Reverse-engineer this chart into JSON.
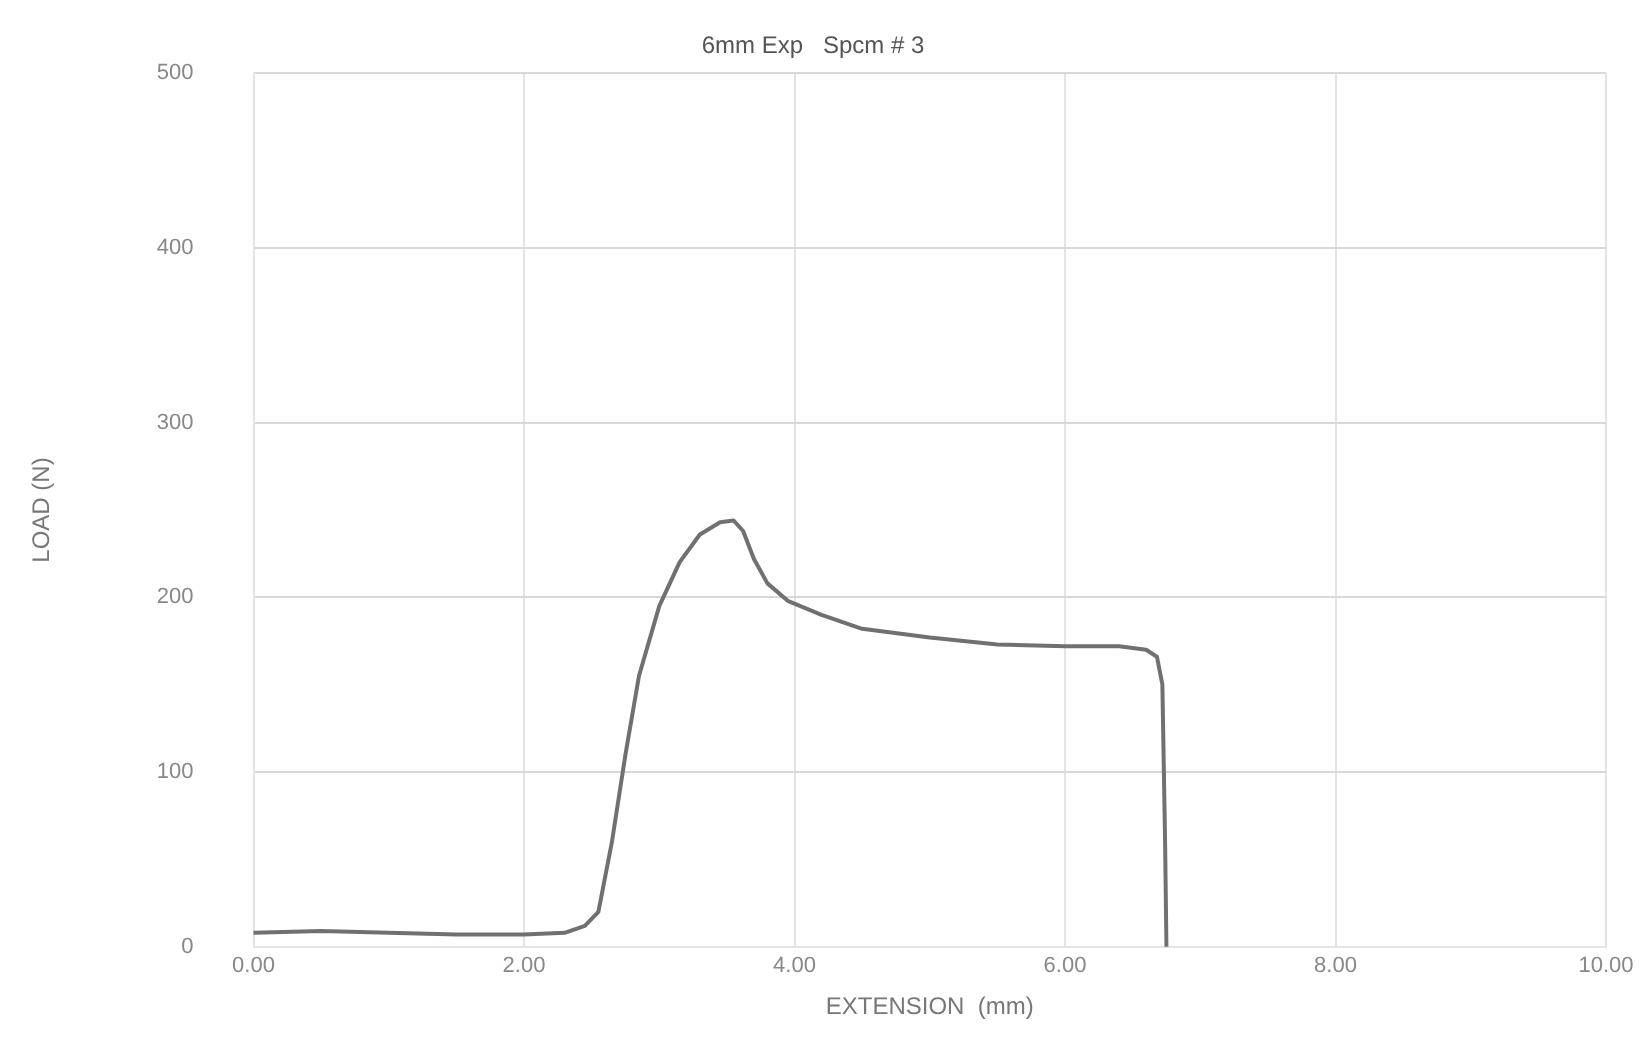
{
  "chart_data": {
    "type": "line",
    "title": "6mm Exp   Spcm # 3",
    "xlabel": "EXTENSION  (mm)",
    "ylabel": "LOAD (N)",
    "series": [
      {
        "color": "#707070",
        "x": [
          0,
          0.5,
          1.0,
          1.5,
          2.0,
          2.3,
          2.45,
          2.55,
          2.65,
          2.75,
          2.85,
          3.0,
          3.15,
          3.3,
          3.45,
          3.55,
          3.62,
          3.7,
          3.8,
          3.95,
          4.2,
          4.5,
          5.0,
          5.5,
          6.0,
          6.4,
          6.6,
          6.68,
          6.72,
          6.74,
          6.75
        ],
        "values": [
          8,
          9,
          8,
          7,
          7,
          8,
          12,
          20,
          60,
          110,
          155,
          195,
          220,
          236,
          243,
          244,
          238,
          222,
          208,
          198,
          190,
          182,
          177,
          173,
          172,
          172,
          170,
          166,
          150,
          60,
          0
        ]
      }
    ],
    "xlim": [
      0,
      10
    ],
    "xticks": [
      {
        "value": 0,
        "label": "0.00"
      },
      {
        "value": 2,
        "label": "2.00"
      },
      {
        "value": 4,
        "label": "4.00"
      },
      {
        "value": 6,
        "label": "6.00"
      },
      {
        "value": 8,
        "label": "8.00"
      },
      {
        "value": 10,
        "label": "10.00"
      }
    ],
    "ylim": [
      0,
      500
    ],
    "yticks": [
      0,
      100,
      200,
      300,
      400,
      500
    ],
    "grid": true,
    "legend": false,
    "marker": "none",
    "line_style": "solid"
  }
}
